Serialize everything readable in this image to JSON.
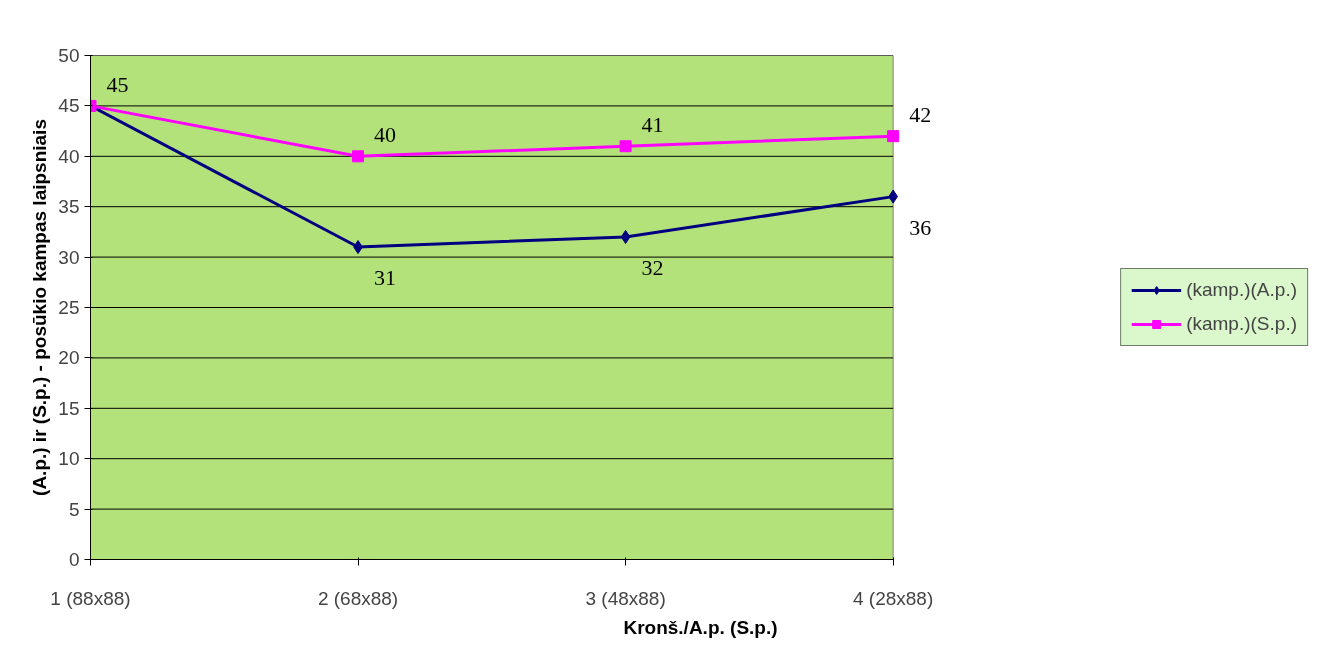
{
  "chart_data": {
    "type": "line",
    "xlabel": "Kronš./A.p. (S.p.)",
    "ylabel": "(A.p.) ir (S.p.) - posūkio kampas laipsniais",
    "categories": [
      "1 (88x88)",
      "2 (68x88)",
      "3 (48x88)",
      "4 (28x88)"
    ],
    "series": [
      {
        "name": "(kamp.)(A.p.)",
        "color": "#000080",
        "marker": "diamond",
        "values": [
          45,
          31,
          32,
          36
        ],
        "value_labels": [
          null,
          "31",
          "32",
          "36"
        ]
      },
      {
        "name": "(kamp.)(S.p.)",
        "color": "#ff00ff",
        "marker": "square",
        "values": [
          45,
          40,
          41,
          42
        ],
        "value_labels": [
          "45",
          "40",
          "41",
          "42"
        ]
      }
    ],
    "ylim": [
      0,
      50
    ],
    "yticks": [
      0,
      5,
      10,
      15,
      20,
      25,
      30,
      35,
      40,
      45,
      50
    ],
    "grid": "y",
    "legend": "right",
    "line_style": "solid"
  }
}
